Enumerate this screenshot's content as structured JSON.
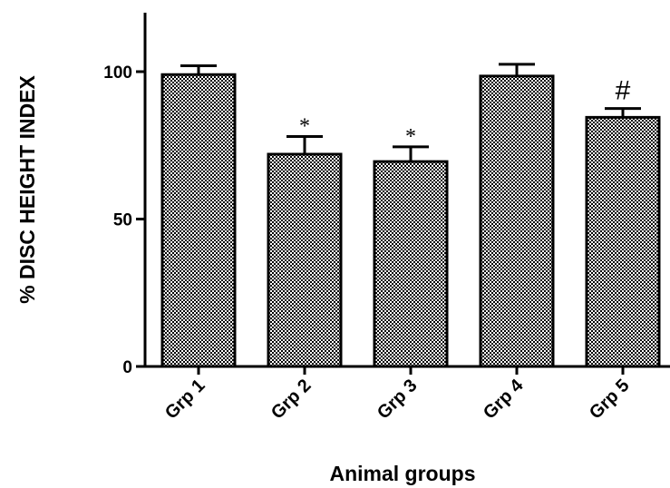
{
  "chart_data": {
    "type": "bar",
    "xlabel": "Animal groups",
    "ylabel": "% DISC HEIGHT INDEX",
    "ylim": [
      0,
      120
    ],
    "yticks": [
      0,
      50,
      100
    ],
    "categories": [
      "Grp 1",
      "Grp 2",
      "Grp 3",
      "Grp 4",
      "Grp 5"
    ],
    "values": [
      99,
      72,
      69.5,
      98.5,
      84.5
    ],
    "errors": [
      3,
      6,
      5,
      4,
      3
    ],
    "annotations": [
      "",
      "*",
      "*",
      "",
      "#"
    ],
    "bar_fill": "crosshatch",
    "grid": false,
    "colors": {
      "bar_stroke": "#000000",
      "hatch_dark": "#000000",
      "hatch_light": "#ffffff"
    }
  }
}
